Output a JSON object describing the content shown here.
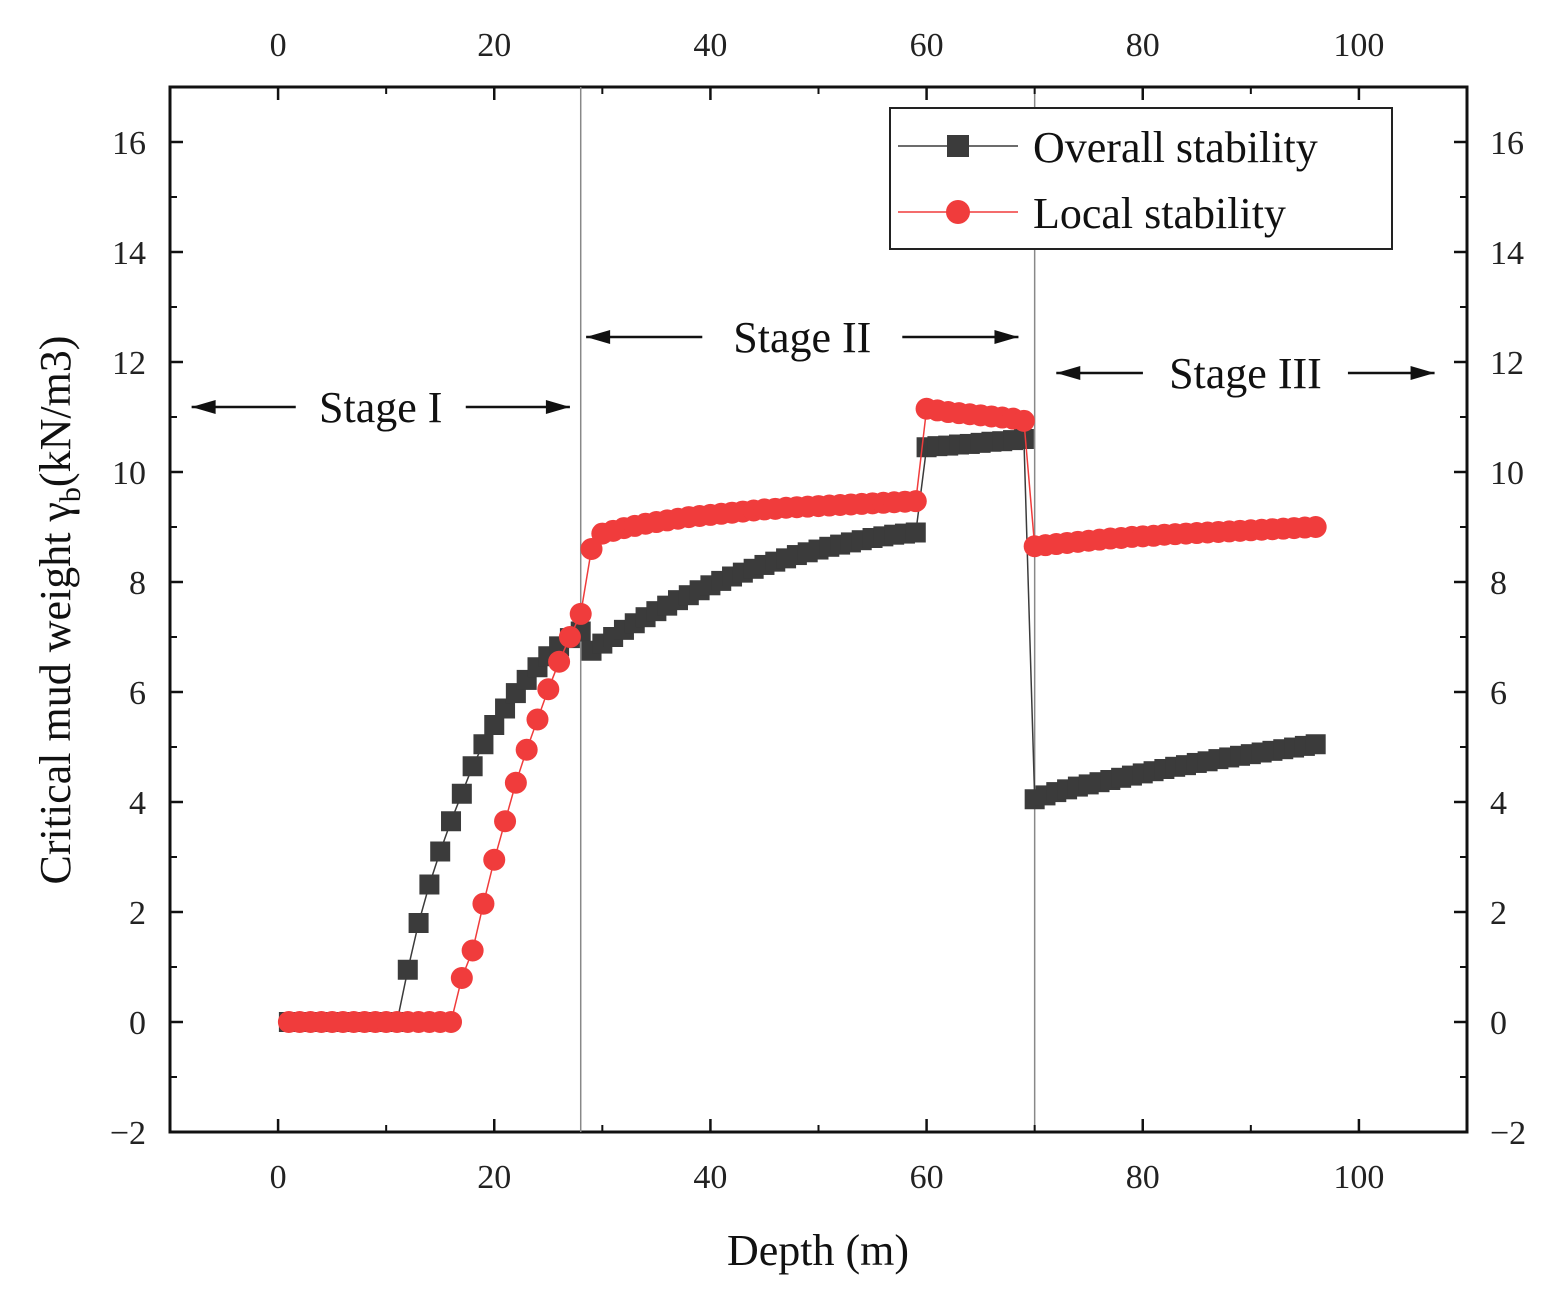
{
  "chart_data": {
    "type": "scatter",
    "xlabel": "Depth (m)",
    "ylabel": "Critical mud weight γ",
    "ylabel_sub": "b",
    "ylabel_unit": "(kN/m3)",
    "xlim": [
      -10,
      110
    ],
    "ylim": [
      -2,
      17
    ],
    "x_ticks": [
      0,
      20,
      40,
      60,
      80,
      100
    ],
    "x_tick_labels": [
      "0",
      "20",
      "40",
      "60",
      "80",
      "100"
    ],
    "y_ticks": [
      -2,
      0,
      2,
      4,
      6,
      8,
      10,
      12,
      14,
      16
    ],
    "y_tick_labels": [
      "−2",
      "0",
      "2",
      "4",
      "6",
      "8",
      "10",
      "12",
      "14",
      "16"
    ],
    "top_axis": true,
    "right_axis": true,
    "grid": false,
    "legend_position": "top-right",
    "stage_boundaries": [
      28,
      70
    ],
    "stages": [
      {
        "label": "Stage I",
        "range": [
          -8,
          27
        ]
      },
      {
        "label": "Stage  II",
        "range": [
          28.5,
          68.5
        ]
      },
      {
        "label": "Stage III",
        "range": [
          72,
          107
        ]
      }
    ],
    "series": [
      {
        "name": "Overall stability",
        "color": "#3b3b3b",
        "marker": "square",
        "x": [
          1,
          2,
          3,
          4,
          5,
          6,
          7,
          8,
          9,
          10,
          11,
          12,
          13,
          14,
          15,
          16,
          17,
          18,
          19,
          20,
          21,
          22,
          23,
          24,
          25,
          26,
          27,
          28,
          29,
          30,
          31,
          32,
          33,
          34,
          35,
          36,
          37,
          38,
          39,
          40,
          41,
          42,
          43,
          44,
          45,
          46,
          47,
          48,
          49,
          50,
          51,
          52,
          53,
          54,
          55,
          56,
          57,
          58,
          59,
          60,
          61,
          62,
          63,
          64,
          65,
          66,
          67,
          68,
          69,
          70,
          71,
          72,
          73,
          74,
          75,
          76,
          77,
          78,
          79,
          80,
          81,
          82,
          83,
          84,
          85,
          86,
          87,
          88,
          89,
          90,
          91,
          92,
          93,
          94,
          95,
          96
        ],
        "y": [
          0,
          0,
          0,
          0,
          0,
          0,
          0,
          0,
          0,
          0,
          0,
          0.95,
          1.8,
          2.5,
          3.1,
          3.65,
          4.15,
          4.65,
          5.05,
          5.4,
          5.7,
          5.98,
          6.22,
          6.45,
          6.65,
          6.83,
          6.98,
          7.1,
          6.75,
          6.88,
          7.0,
          7.13,
          7.25,
          7.36,
          7.47,
          7.57,
          7.67,
          7.76,
          7.85,
          7.94,
          8.02,
          8.1,
          8.17,
          8.24,
          8.31,
          8.37,
          8.43,
          8.49,
          8.54,
          8.59,
          8.64,
          8.68,
          8.72,
          8.76,
          8.8,
          8.83,
          8.86,
          8.88,
          8.9,
          10.45,
          10.47,
          10.48,
          10.5,
          10.51,
          10.53,
          10.55,
          10.56,
          10.58,
          10.6,
          4.05,
          4.12,
          4.18,
          4.23,
          4.28,
          4.32,
          4.36,
          4.4,
          4.44,
          4.48,
          4.52,
          4.56,
          4.6,
          4.64,
          4.67,
          4.71,
          4.74,
          4.78,
          4.81,
          4.84,
          4.87,
          4.9,
          4.93,
          4.96,
          4.99,
          5.02,
          5.05
        ]
      },
      {
        "name": "Local stability",
        "color": "#f03c3c",
        "marker": "circle",
        "x": [
          1,
          2,
          3,
          4,
          5,
          6,
          7,
          8,
          9,
          10,
          11,
          12,
          13,
          14,
          15,
          16,
          17,
          18,
          19,
          20,
          21,
          22,
          23,
          24,
          25,
          26,
          27,
          28,
          29,
          30,
          31,
          32,
          33,
          34,
          35,
          36,
          37,
          38,
          39,
          40,
          41,
          42,
          43,
          44,
          45,
          46,
          47,
          48,
          49,
          50,
          51,
          52,
          53,
          54,
          55,
          56,
          57,
          58,
          59,
          60,
          61,
          62,
          63,
          64,
          65,
          66,
          67,
          68,
          69,
          70,
          71,
          72,
          73,
          74,
          75,
          76,
          77,
          78,
          79,
          80,
          81,
          82,
          83,
          84,
          85,
          86,
          87,
          88,
          89,
          90,
          91,
          92,
          93,
          94,
          95,
          96
        ],
        "y": [
          0,
          0,
          0,
          0,
          0,
          0,
          0,
          0,
          0,
          0,
          0,
          0,
          0,
          0,
          0,
          0,
          0.8,
          1.3,
          2.15,
          2.95,
          3.65,
          4.35,
          4.95,
          5.5,
          6.05,
          6.55,
          7.0,
          7.42,
          8.6,
          8.88,
          8.93,
          8.98,
          9.02,
          9.06,
          9.09,
          9.12,
          9.15,
          9.18,
          9.2,
          9.22,
          9.24,
          9.26,
          9.28,
          9.3,
          9.32,
          9.33,
          9.35,
          9.36,
          9.37,
          9.38,
          9.39,
          9.4,
          9.41,
          9.42,
          9.43,
          9.44,
          9.45,
          9.46,
          9.47,
          11.15,
          11.12,
          11.09,
          11.07,
          11.05,
          11.03,
          11.01,
          10.99,
          10.97,
          10.93,
          8.65,
          8.67,
          8.69,
          8.71,
          8.73,
          8.75,
          8.77,
          8.79,
          8.8,
          8.82,
          8.83,
          8.84,
          8.86,
          8.87,
          8.88,
          8.89,
          8.9,
          8.91,
          8.92,
          8.93,
          8.94,
          8.95,
          8.96,
          8.97,
          8.98,
          8.99,
          9.0
        ]
      }
    ]
  }
}
